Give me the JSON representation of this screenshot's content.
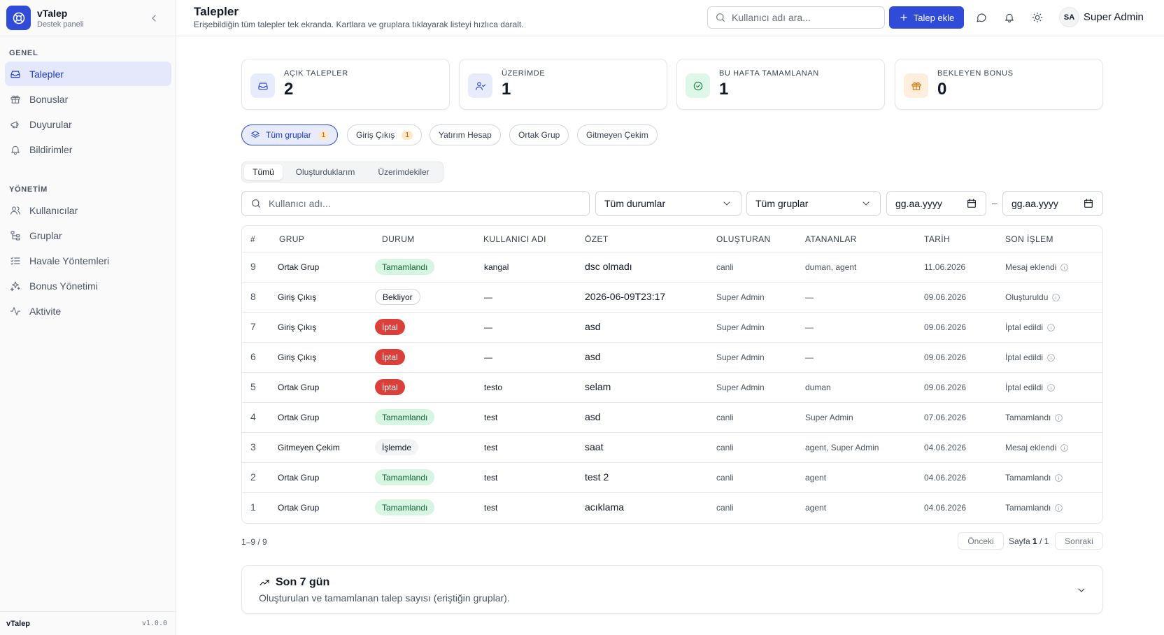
{
  "brand": {
    "title": "vTalep",
    "subtitle": "Destek paneli"
  },
  "sidebar": {
    "section_general": "GENEL",
    "section_admin": "YÖNETİM",
    "general_items": [
      {
        "label": "Talepler",
        "icon": "inbox-icon",
        "active": true
      },
      {
        "label": "Bonuslar",
        "icon": "gift-icon"
      },
      {
        "label": "Duyurular",
        "icon": "megaphone-icon"
      },
      {
        "label": "Bildirimler",
        "icon": "bell-icon"
      }
    ],
    "admin_items": [
      {
        "label": "Kullanıcılar",
        "icon": "users-icon"
      },
      {
        "label": "Gruplar",
        "icon": "group-tree-icon"
      },
      {
        "label": "Havale Yöntemleri",
        "icon": "list-check-icon"
      },
      {
        "label": "Bonus Yönetimi",
        "icon": "sparkles-icon"
      },
      {
        "label": "Aktivite",
        "icon": "activity-icon"
      }
    ],
    "footer_app": "vTalep",
    "footer_version": "v1.0.0"
  },
  "header": {
    "title": "Talepler",
    "subtitle": "Erişebildiğin tüm talepler tek ekranda. Kartlara ve gruplara tıklayarak listeyi hızlıca daralt.",
    "search_placeholder": "Kullanıcı adı ara...",
    "add_label": "Talep ekle",
    "user_initials": "SA",
    "user_name": "Super Admin"
  },
  "stats": [
    {
      "label": "AÇIK TALEPLER",
      "value": "2",
      "icon": "inbox-icon",
      "bg": "#e8ebfc",
      "fg": "#2f4bd8"
    },
    {
      "label": "ÜZERİMDE",
      "value": "1",
      "icon": "user-check-icon",
      "bg": "#e8ebfc",
      "fg": "#2f4bd8"
    },
    {
      "label": "BU HAFTA TAMAMLANAN",
      "value": "1",
      "icon": "check-circle-icon",
      "bg": "#def7e9",
      "fg": "#15803d"
    },
    {
      "label": "BEKLEYEN BONUS",
      "value": "0",
      "icon": "gift-icon",
      "bg": "#fdeede",
      "fg": "#d97706"
    }
  ],
  "group_chips": [
    {
      "label": "Tüm gruplar",
      "count": "1",
      "active": true
    },
    {
      "label": "Giriş Çıkış",
      "count": "1"
    },
    {
      "label": "Yatırım Hesap"
    },
    {
      "label": "Ortak Grup"
    },
    {
      "label": "Gitmeyen Çekim"
    }
  ],
  "tabs": [
    {
      "label": "Tümü",
      "active": true
    },
    {
      "label": "Oluşturduklarım"
    },
    {
      "label": "Üzerimdekiler"
    }
  ],
  "filters": {
    "username_placeholder": "Kullanıcı adı...",
    "status_value": "Tüm durumlar",
    "group_value": "Tüm gruplar",
    "date_from": "gg.aa.yyyy",
    "date_separator": "–",
    "date_to": "gg.aa.yyyy"
  },
  "table": {
    "headers": [
      "#",
      "GRUP",
      "DURUM",
      "KULLANICI ADI",
      "ÖZET",
      "OLUŞTURAN",
      "ATANANLAR",
      "TARİH",
      "SON İŞLEM"
    ],
    "rows": [
      {
        "id": "9",
        "group": "Ortak Grup",
        "status": "Tamamlandı",
        "status_type": "done",
        "user": "kangal",
        "summary": "dsc olmadı",
        "creator": "canli",
        "assignees": "duman, agent",
        "date": "11.06.2026",
        "last": "Mesaj eklendi"
      },
      {
        "id": "8",
        "group": "Giriş Çıkış",
        "status": "Bekliyor",
        "status_type": "wait",
        "user": "—",
        "summary": "2026-06-09T23:17",
        "creator": "Super Admin",
        "assignees": "—",
        "date": "09.06.2026",
        "last": "Oluşturuldu"
      },
      {
        "id": "7",
        "group": "Giriş Çıkış",
        "status": "İptal",
        "status_type": "cancel",
        "user": "—",
        "summary": "asd",
        "creator": "Super Admin",
        "assignees": "—",
        "date": "09.06.2026",
        "last": "İptal edildi"
      },
      {
        "id": "6",
        "group": "Giriş Çıkış",
        "status": "İptal",
        "status_type": "cancel",
        "user": "—",
        "summary": "asd",
        "creator": "Super Admin",
        "assignees": "—",
        "date": "09.06.2026",
        "last": "İptal edildi"
      },
      {
        "id": "5",
        "group": "Ortak Grup",
        "status": "İptal",
        "status_type": "cancel",
        "user": "testo",
        "summary": "selam",
        "creator": "Super Admin",
        "assignees": "duman",
        "date": "09.06.2026",
        "last": "İptal edildi"
      },
      {
        "id": "4",
        "group": "Ortak Grup",
        "status": "Tamamlandı",
        "status_type": "done",
        "user": "test",
        "summary": "asd",
        "creator": "canli",
        "assignees": "Super Admin",
        "date": "07.06.2026",
        "last": "Tamamlandı"
      },
      {
        "id": "3",
        "group": "Gitmeyen Çekim",
        "status": "İşlemde",
        "status_type": "work",
        "user": "test",
        "summary": "saat",
        "creator": "canli",
        "assignees": "agent, Super Admin",
        "date": "04.06.2026",
        "last": "Mesaj eklendi"
      },
      {
        "id": "2",
        "group": "Ortak Grup",
        "status": "Tamamlandı",
        "status_type": "done",
        "user": "test",
        "summary": "test 2",
        "creator": "canli",
        "assignees": "agent",
        "date": "04.06.2026",
        "last": "Tamamlandı"
      },
      {
        "id": "1",
        "group": "Ortak Grup",
        "status": "Tamamlandı",
        "status_type": "done",
        "user": "test",
        "summary": "acıklama",
        "creator": "canli",
        "assignees": "agent",
        "date": "04.06.2026",
        "last": "Tamamlandı"
      }
    ]
  },
  "pager": {
    "info": "1–9 / 9",
    "prev": "Önceki",
    "page_label": "Sayfa",
    "current": "1",
    "sep": "/",
    "total": "1",
    "next": "Sonraki"
  },
  "trend_panel": {
    "title": "Son 7 gün",
    "subtitle": "Oluşturulan ve tamamlanan talep sayısı (eriştiğin gruplar)."
  }
}
